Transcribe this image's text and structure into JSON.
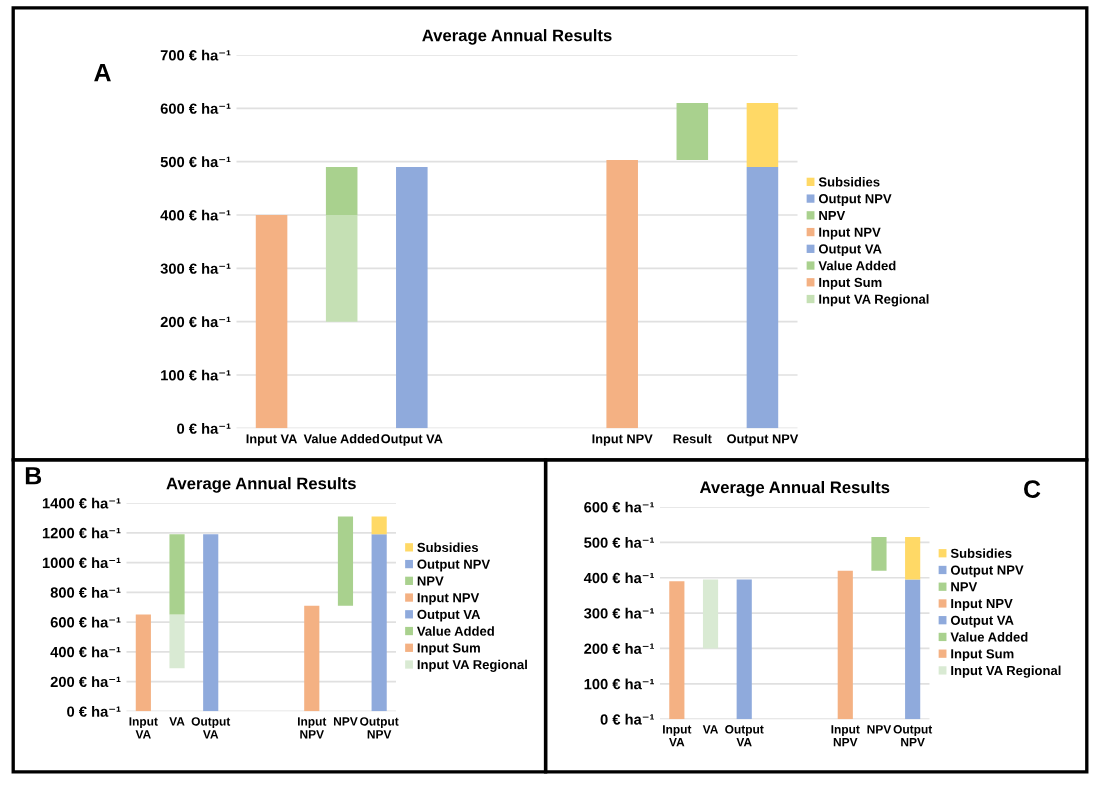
{
  "chart_data": [
    {
      "type": "bar",
      "title": "Average Annual Results",
      "annotations": [
        "A"
      ],
      "categories": [
        "Input VA",
        "Value Added",
        "Output VA",
        null,
        null,
        "Input NPV",
        "Result",
        "Output NPV"
      ],
      "ylim": [
        0,
        700
      ],
      "yticks": [
        {
          "value": 0,
          "label": "0 € ha⁻¹"
        },
        {
          "value": 100,
          "label": "100 € ha⁻¹"
        },
        {
          "value": 200,
          "label": "200 € ha⁻¹"
        },
        {
          "value": 300,
          "label": "300 € ha⁻¹"
        },
        {
          "value": 400,
          "label": "400 € ha⁻¹"
        },
        {
          "value": 500,
          "label": "500 € ha⁻¹"
        },
        {
          "value": 600,
          "label": "600 € ha⁻¹"
        },
        {
          "value": 700,
          "label": "700 € ha⁻¹"
        }
      ],
      "grid": "y",
      "legend": "right",
      "series": [
        {
          "name": "Input VA Regional",
          "color": "#c5e0b4",
          "values": [
            null,
            200,
            null,
            null,
            null,
            null,
            null,
            null
          ],
          "base": [
            null,
            200,
            null,
            null,
            null,
            null,
            null,
            null
          ]
        },
        {
          "name": "Input Sum",
          "color": "#f4b183",
          "values": [
            400,
            null,
            null,
            null,
            null,
            null,
            null,
            null
          ],
          "base": [
            0,
            null,
            null,
            null,
            null,
            null,
            null,
            null
          ]
        },
        {
          "name": "Value Added",
          "color": "#a9d18e",
          "values": [
            null,
            90,
            null,
            null,
            null,
            null,
            null,
            null
          ],
          "base": [
            null,
            400,
            null,
            null,
            null,
            null,
            null,
            null
          ]
        },
        {
          "name": "Output VA",
          "color": "#8faadc",
          "values": [
            null,
            null,
            490,
            null,
            null,
            null,
            null,
            null
          ],
          "base": [
            null,
            null,
            0,
            null,
            null,
            null,
            null,
            null
          ]
        },
        {
          "name": "Input NPV",
          "color": "#f4b183",
          "values": [
            null,
            null,
            null,
            null,
            null,
            503,
            null,
            null
          ],
          "base": [
            null,
            null,
            null,
            null,
            null,
            0,
            null,
            null
          ]
        },
        {
          "name": "NPV",
          "color": "#a9d18e",
          "values": [
            null,
            null,
            null,
            null,
            null,
            null,
            107,
            null
          ],
          "base": [
            null,
            null,
            null,
            null,
            null,
            null,
            503,
            null
          ]
        },
        {
          "name": "Output NPV",
          "color": "#8faadc",
          "values": [
            null,
            null,
            null,
            null,
            null,
            null,
            null,
            490
          ],
          "base": [
            null,
            null,
            null,
            null,
            null,
            null,
            null,
            0
          ]
        },
        {
          "name": "Subsidies",
          "color": "#ffd966",
          "values": [
            null,
            null,
            null,
            null,
            null,
            null,
            null,
            120
          ],
          "base": [
            null,
            null,
            null,
            null,
            null,
            null,
            null,
            490
          ]
        }
      ]
    },
    {
      "type": "bar",
      "title": "Average Annual Results",
      "annotations": [
        "B"
      ],
      "categories": [
        "Input\nVA",
        "VA",
        "Output\nVA",
        null,
        null,
        "Input\nNPV",
        "NPV",
        "Output\nNPV"
      ],
      "ylim": [
        0,
        1400
      ],
      "yticks": [
        {
          "value": 0,
          "label": "0 € ha⁻¹"
        },
        {
          "value": 200,
          "label": "200 € ha⁻¹"
        },
        {
          "value": 400,
          "label": "400 € ha⁻¹"
        },
        {
          "value": 600,
          "label": "600 € ha⁻¹"
        },
        {
          "value": 800,
          "label": "800 € ha⁻¹"
        },
        {
          "value": 1000,
          "label": "1000 € ha⁻¹"
        },
        {
          "value": 1200,
          "label": "1200 € ha⁻¹"
        },
        {
          "value": 1400,
          "label": "1400 € ha⁻¹"
        }
      ],
      "grid": "y",
      "legend": "right",
      "series": [
        {
          "name": "Input VA Regional",
          "color": "#d9ead3",
          "values": [
            null,
            360,
            null,
            null,
            null,
            null,
            null,
            null
          ],
          "base": [
            null,
            290,
            null,
            null,
            null,
            null,
            null,
            null
          ]
        },
        {
          "name": "Input Sum",
          "color": "#f4b183",
          "values": [
            650,
            null,
            null,
            null,
            null,
            null,
            null,
            null
          ],
          "base": [
            0,
            null,
            null,
            null,
            null,
            null,
            null,
            null
          ]
        },
        {
          "name": "Value Added",
          "color": "#a9d18e",
          "values": [
            null,
            540,
            null,
            null,
            null,
            null,
            null,
            null
          ],
          "base": [
            null,
            650,
            null,
            null,
            null,
            null,
            null,
            null
          ]
        },
        {
          "name": "Output VA",
          "color": "#8faadc",
          "values": [
            null,
            null,
            1190,
            null,
            null,
            null,
            null,
            null
          ],
          "base": [
            null,
            null,
            0,
            null,
            null,
            null,
            null,
            null
          ]
        },
        {
          "name": "Input NPV",
          "color": "#f4b183",
          "values": [
            null,
            null,
            null,
            null,
            null,
            710,
            null,
            null
          ],
          "base": [
            null,
            null,
            null,
            null,
            null,
            0,
            null,
            null
          ]
        },
        {
          "name": "NPV",
          "color": "#a9d18e",
          "values": [
            null,
            null,
            null,
            null,
            null,
            null,
            600,
            null
          ],
          "base": [
            null,
            null,
            null,
            null,
            null,
            null,
            710,
            null
          ]
        },
        {
          "name": "Output NPV",
          "color": "#8faadc",
          "values": [
            null,
            null,
            null,
            null,
            null,
            null,
            null,
            1190
          ],
          "base": [
            null,
            null,
            null,
            null,
            null,
            null,
            null,
            0
          ]
        },
        {
          "name": "Subsidies",
          "color": "#ffd966",
          "values": [
            null,
            null,
            null,
            null,
            null,
            null,
            null,
            120
          ],
          "base": [
            null,
            null,
            null,
            null,
            null,
            null,
            null,
            1190
          ]
        }
      ]
    },
    {
      "type": "bar",
      "title": "Average Annual Results",
      "annotations": [
        "C"
      ],
      "categories": [
        "Input\nVA",
        "VA",
        "Output\nVA",
        null,
        null,
        "Input\nNPV",
        "NPV",
        "Output\nNPV"
      ],
      "ylim": [
        0,
        600
      ],
      "yticks": [
        {
          "value": 0,
          "label": "0 € ha⁻¹"
        },
        {
          "value": 100,
          "label": "100 € ha⁻¹"
        },
        {
          "value": 200,
          "label": "200 € ha⁻¹"
        },
        {
          "value": 300,
          "label": "300 € ha⁻¹"
        },
        {
          "value": 400,
          "label": "400 € ha⁻¹"
        },
        {
          "value": 500,
          "label": "500 € ha⁻¹"
        },
        {
          "value": 600,
          "label": "600 € ha⁻¹"
        }
      ],
      "grid": "y",
      "legend": "right",
      "series": [
        {
          "name": "Input VA Regional",
          "color": "#d9ead3",
          "values": [
            null,
            195,
            null,
            null,
            null,
            null,
            null,
            null
          ],
          "base": [
            null,
            200,
            null,
            null,
            null,
            null,
            null,
            null
          ]
        },
        {
          "name": "Input Sum",
          "color": "#f4b183",
          "values": [
            390,
            null,
            null,
            null,
            null,
            null,
            null,
            null
          ],
          "base": [
            0,
            null,
            null,
            null,
            null,
            null,
            null,
            null
          ]
        },
        {
          "name": "Value Added",
          "color": "#a9d18e",
          "values": [
            null,
            null,
            null,
            null,
            null,
            null,
            null,
            null
          ],
          "base": [
            null,
            null,
            null,
            null,
            null,
            null,
            null,
            null
          ]
        },
        {
          "name": "Output VA",
          "color": "#8faadc",
          "values": [
            null,
            null,
            395,
            null,
            null,
            null,
            null,
            null
          ],
          "base": [
            null,
            null,
            0,
            null,
            null,
            null,
            null,
            null
          ]
        },
        {
          "name": "Input NPV",
          "color": "#f4b183",
          "values": [
            null,
            null,
            null,
            null,
            null,
            420,
            null,
            null
          ],
          "base": [
            null,
            null,
            null,
            null,
            null,
            0,
            null,
            null
          ]
        },
        {
          "name": "NPV",
          "color": "#a9d18e",
          "values": [
            null,
            null,
            null,
            null,
            null,
            null,
            95,
            null
          ],
          "base": [
            null,
            null,
            null,
            null,
            null,
            null,
            420,
            null
          ]
        },
        {
          "name": "Output NPV",
          "color": "#8faadc",
          "values": [
            null,
            null,
            null,
            null,
            null,
            null,
            null,
            395
          ],
          "base": [
            null,
            null,
            null,
            null,
            null,
            null,
            null,
            0
          ]
        },
        {
          "name": "Subsidies",
          "color": "#ffd966",
          "values": [
            null,
            null,
            null,
            null,
            null,
            null,
            null,
            120
          ],
          "base": [
            null,
            null,
            null,
            null,
            null,
            null,
            null,
            395
          ]
        }
      ]
    }
  ]
}
